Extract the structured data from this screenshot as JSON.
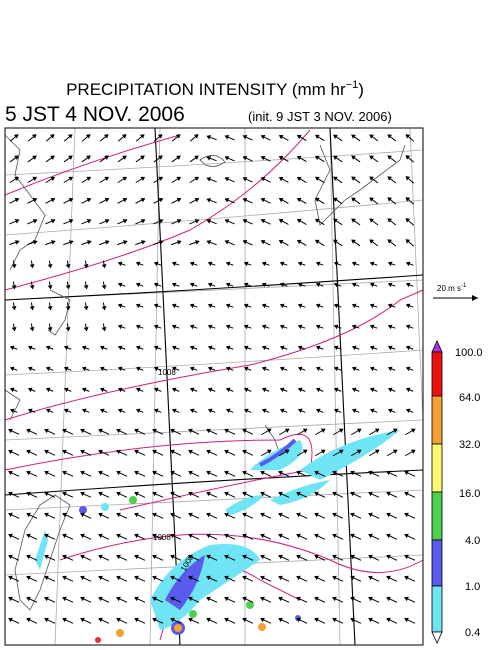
{
  "header": {
    "title": "PRECIPITATION INTENSITY (mm hr",
    "title_exponent": "−1",
    "title_close": ")",
    "valid_time": "5 JST 4 NOV. 2006",
    "init_time": "(init. 9 JST 3 NOV. 2006)"
  },
  "wind_legend": {
    "label": "20 m s",
    "exponent": "-1"
  },
  "isobar_labels": [
    "1008",
    "1008",
    "1008"
  ],
  "colorbar": {
    "labels": [
      "100.0",
      "64.0",
      "32.0",
      "16.0",
      "4.0",
      "1.0",
      "0.4"
    ]
  }
}
